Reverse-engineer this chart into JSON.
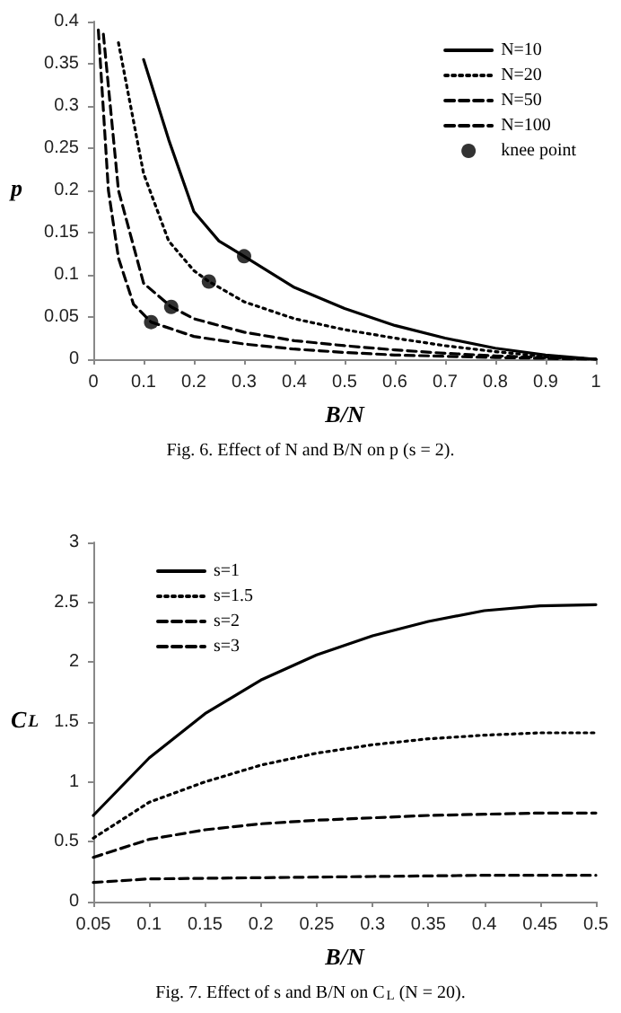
{
  "chart_data": [
    {
      "type": "line",
      "xlabel": "B/N",
      "ylabel": "p",
      "annotations": [
        "Fig. 6. Effect of N and B/N on p (s = 2)."
      ],
      "xlim": [
        0,
        1
      ],
      "xticks": [
        0,
        0.1,
        0.2,
        0.3,
        0.4,
        0.5,
        0.6,
        0.7,
        0.8,
        0.9,
        1
      ],
      "ylim": [
        0,
        0.4
      ],
      "yticks": [
        0,
        0.05,
        0.1,
        0.15,
        0.2,
        0.25,
        0.3,
        0.35,
        0.4
      ],
      "grid": false,
      "legend": "top right",
      "series": [
        {
          "name": "N=10",
          "color": "#000000",
          "line_style": "solid",
          "x": [
            0.1,
            0.15,
            0.2,
            0.25,
            0.3,
            0.4,
            0.5,
            0.6,
            0.7,
            0.8,
            0.9,
            1
          ],
          "values": [
            0.355,
            0.26,
            0.175,
            0.14,
            0.122,
            0.085,
            0.06,
            0.04,
            0.025,
            0.013,
            0.005,
            0
          ]
        },
        {
          "name": "N=20",
          "color": "#000000",
          "line_style": "dotted",
          "x": [
            0.05,
            0.1,
            0.15,
            0.2,
            0.23,
            0.3,
            0.4,
            0.5,
            0.6,
            0.7,
            0.8,
            0.9,
            1
          ],
          "values": [
            0.375,
            0.22,
            0.14,
            0.105,
            0.092,
            0.068,
            0.048,
            0.035,
            0.025,
            0.016,
            0.009,
            0.003,
            0
          ]
        },
        {
          "name": "N=50",
          "color": "#000000",
          "line_style": "dashed",
          "x": [
            0.02,
            0.05,
            0.1,
            0.155,
            0.2,
            0.3,
            0.4,
            0.5,
            0.6,
            0.7,
            0.8,
            0.9,
            1
          ],
          "values": [
            0.385,
            0.2,
            0.09,
            0.062,
            0.048,
            0.032,
            0.022,
            0.016,
            0.011,
            0.007,
            0.004,
            0.002,
            0
          ]
        },
        {
          "name": "N=100",
          "color": "#000000",
          "line_style": "dashed",
          "x": [
            0.01,
            0.03,
            0.05,
            0.08,
            0.115,
            0.2,
            0.3,
            0.4,
            0.5,
            0.6,
            0.8,
            1
          ],
          "values": [
            0.39,
            0.2,
            0.12,
            0.065,
            0.044,
            0.027,
            0.018,
            0.012,
            0.008,
            0.005,
            0.002,
            0
          ]
        },
        {
          "name": "knee point",
          "type": "scatter",
          "color": "#000000",
          "marker": "circle",
          "x": [
            0.3,
            0.23,
            0.155,
            0.115
          ],
          "values": [
            0.122,
            0.092,
            0.062,
            0.044
          ]
        }
      ]
    },
    {
      "type": "line",
      "xlabel": "B/N",
      "ylabel": "C$_{L}$",
      "annotations": [
        "Fig. 7. Effect of s and B/N on C$_{L}$ (N = 20)."
      ],
      "xlim": [
        0.05,
        0.5
      ],
      "xticks": [
        0.05,
        0.1,
        0.15,
        0.2,
        0.25,
        0.3,
        0.35,
        0.4,
        0.45,
        0.5
      ],
      "ylim": [
        0,
        3
      ],
      "yticks": [
        0,
        0.5,
        1,
        1.5,
        2,
        2.5,
        3
      ],
      "grid": false,
      "legend": "top left",
      "series": [
        {
          "name": "s=1",
          "color": "#000000",
          "line_style": "solid",
          "x": [
            0.05,
            0.1,
            0.15,
            0.2,
            0.25,
            0.3,
            0.35,
            0.4,
            0.45,
            0.5
          ],
          "values": [
            0.72,
            1.2,
            1.57,
            1.85,
            2.06,
            2.22,
            2.34,
            2.43,
            2.47,
            2.48
          ]
        },
        {
          "name": "s=1.5",
          "color": "#000000",
          "line_style": "dotted",
          "x": [
            0.05,
            0.1,
            0.15,
            0.2,
            0.25,
            0.3,
            0.35,
            0.4,
            0.45,
            0.5
          ],
          "values": [
            0.53,
            0.83,
            1.0,
            1.14,
            1.24,
            1.31,
            1.36,
            1.39,
            1.41,
            1.41
          ]
        },
        {
          "name": "s=2",
          "color": "#000000",
          "line_style": "dashed",
          "x": [
            0.05,
            0.1,
            0.15,
            0.2,
            0.25,
            0.3,
            0.35,
            0.4,
            0.45,
            0.5
          ],
          "values": [
            0.37,
            0.52,
            0.6,
            0.65,
            0.68,
            0.7,
            0.72,
            0.73,
            0.74,
            0.74
          ]
        },
        {
          "name": "s=3",
          "color": "#000000",
          "line_style": "dashed",
          "x": [
            0.05,
            0.1,
            0.2,
            0.3,
            0.4,
            0.5
          ],
          "values": [
            0.16,
            0.19,
            0.2,
            0.21,
            0.22,
            0.22
          ]
        }
      ]
    }
  ]
}
